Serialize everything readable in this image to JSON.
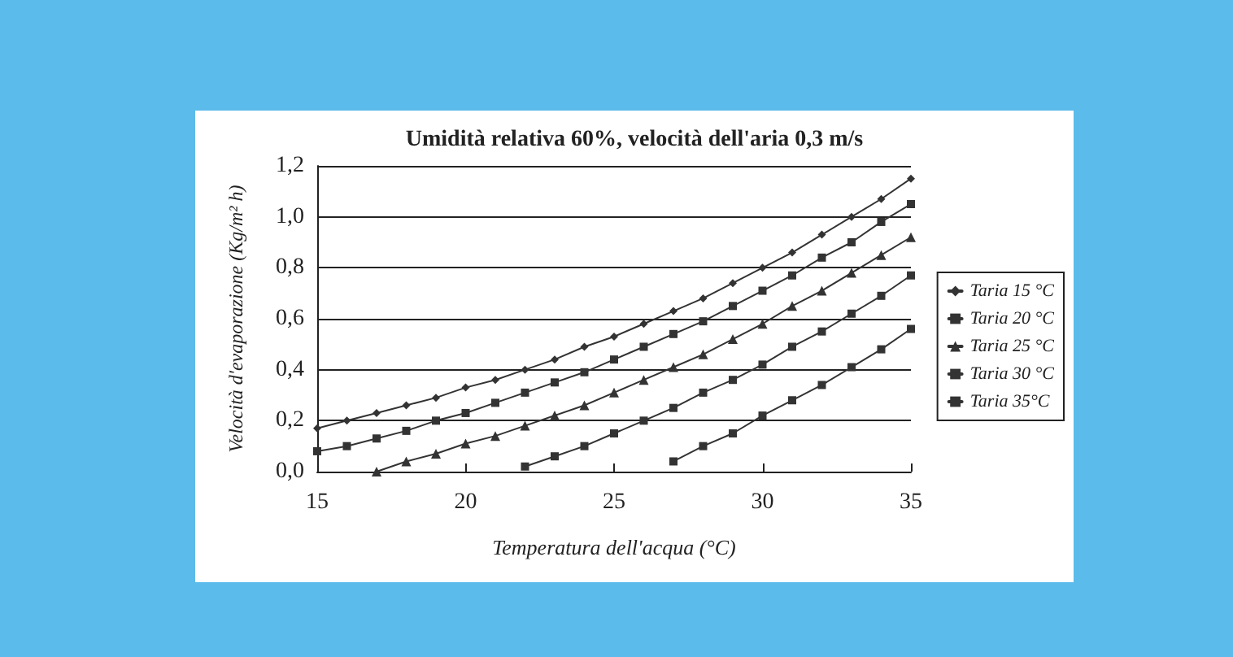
{
  "chart_data": {
    "type": "line",
    "title": "Umidità relativa 60%, velocità dell'aria 0,3 m/s",
    "xlabel": "Temperatura dell'acqua (°C)",
    "ylabel": "Velocità d'evaporazione (Kg/m² h)",
    "xlim": [
      15,
      35
    ],
    "xticks": [
      15,
      20,
      25,
      30,
      35
    ],
    "ylim": [
      0,
      1.2
    ],
    "yticks": [
      {
        "value": 0,
        "label": "0,0"
      },
      {
        "value": 0.2,
        "label": "0,2"
      },
      {
        "value": 0.4,
        "label": "0,4"
      },
      {
        "value": 0.6,
        "label": "0,6"
      },
      {
        "value": 0.8,
        "label": "0,8"
      },
      {
        "value": 1,
        "label": "1,0"
      },
      {
        "value": 1.2,
        "label": "1,2"
      }
    ],
    "grid": "y",
    "legend": "right",
    "line_style": "solid",
    "series": [
      {
        "name": "Taria 15 °C",
        "color": "#333333",
        "marker": "diamond",
        "x": [
          15,
          16,
          17,
          18,
          19,
          20,
          21,
          22,
          23,
          24,
          25,
          26,
          27,
          28,
          29,
          30,
          31,
          32,
          33,
          34,
          35
        ],
        "values": [
          0.17,
          0.2,
          0.23,
          0.26,
          0.29,
          0.33,
          0.36,
          0.4,
          0.44,
          0.49,
          0.53,
          0.58,
          0.63,
          0.68,
          0.74,
          0.8,
          0.86,
          0.93,
          1.0,
          1.07,
          1.15
        ]
      },
      {
        "name": "Taria 20 °C",
        "color": "#333333",
        "marker": "square",
        "x": [
          15,
          16,
          17,
          18,
          19,
          20,
          21,
          22,
          23,
          24,
          25,
          26,
          27,
          28,
          29,
          30,
          31,
          32,
          33,
          34,
          35
        ],
        "values": [
          0.08,
          0.1,
          0.13,
          0.16,
          0.2,
          0.23,
          0.27,
          0.31,
          0.35,
          0.39,
          0.44,
          0.49,
          0.54,
          0.59,
          0.65,
          0.71,
          0.77,
          0.84,
          0.9,
          0.98,
          1.05
        ]
      },
      {
        "name": "Taria 25 °C",
        "color": "#333333",
        "marker": "triangle",
        "x": [
          17,
          18,
          19,
          20,
          21,
          22,
          23,
          24,
          25,
          26,
          27,
          28,
          29,
          30,
          31,
          32,
          33,
          34,
          35
        ],
        "values": [
          0.0,
          0.04,
          0.07,
          0.11,
          0.14,
          0.18,
          0.22,
          0.26,
          0.31,
          0.36,
          0.41,
          0.46,
          0.52,
          0.58,
          0.65,
          0.71,
          0.78,
          0.85,
          0.92
        ]
      },
      {
        "name": "Taria 30 °C",
        "color": "#333333",
        "marker": "square",
        "x": [
          22,
          23,
          24,
          25,
          26,
          27,
          28,
          29,
          30,
          31,
          32,
          33,
          34,
          35
        ],
        "values": [
          0.02,
          0.06,
          0.1,
          0.15,
          0.2,
          0.25,
          0.31,
          0.36,
          0.42,
          0.49,
          0.55,
          0.62,
          0.69,
          0.77
        ]
      },
      {
        "name": "Taria 35°C",
        "color": "#333333",
        "marker": "square",
        "x": [
          27,
          28,
          29,
          30,
          31,
          32,
          33,
          34,
          35
        ],
        "values": [
          0.04,
          0.1,
          0.15,
          0.22,
          0.28,
          0.34,
          0.41,
          0.48,
          0.56
        ]
      }
    ]
  }
}
